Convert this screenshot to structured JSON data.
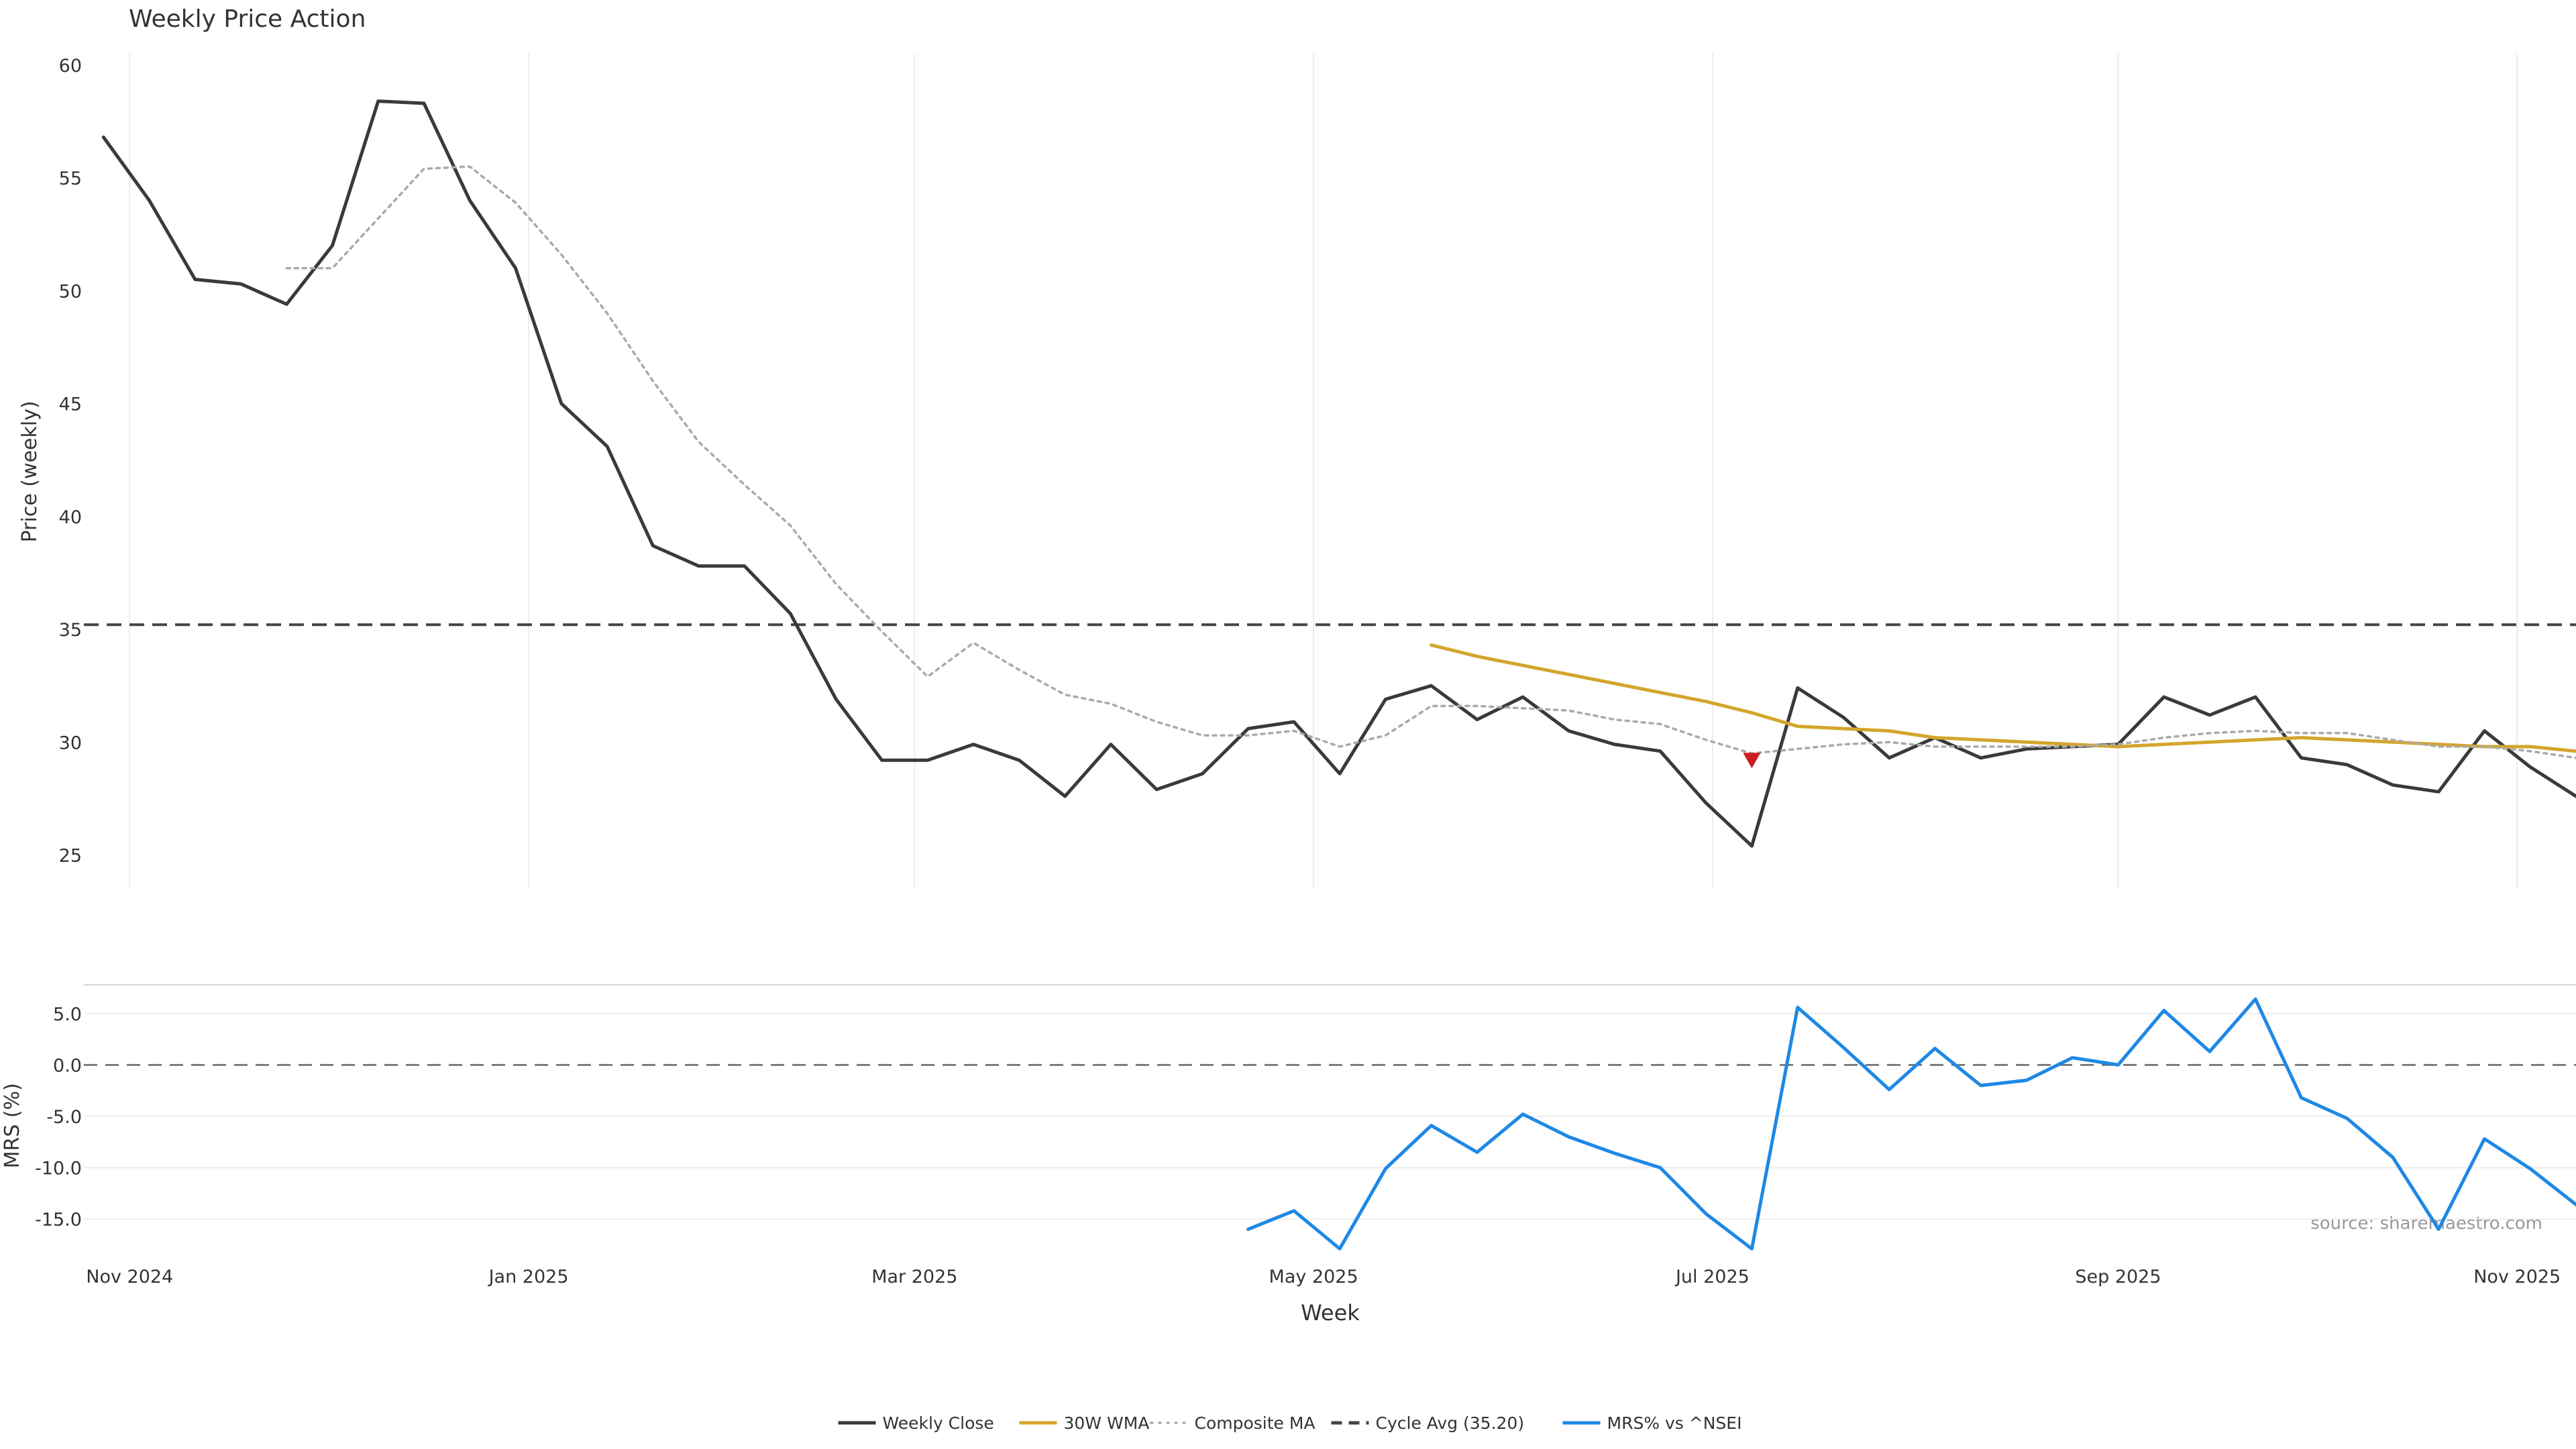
{
  "chart_data": {
    "type": "line",
    "title": "Weekly Price Action",
    "price_panel": {
      "ylabel": "Price (weekly)",
      "ylim": [
        23.5,
        60.5
      ],
      "yticks": [
        25,
        30,
        35,
        40,
        45,
        50,
        55,
        60
      ],
      "grid": "vertical"
    },
    "mrs_panel": {
      "ylabel": "MRS (%)",
      "ylim": [
        -17.8,
        7.8
      ],
      "yticks": [
        5.0,
        0.0,
        -5.0,
        -10.0,
        -15.0
      ],
      "ytick_labels": [
        "5.0",
        "0.0",
        "-5.0",
        "-10.0",
        "-15.0"
      ],
      "zero_line": true,
      "grid": "horizontal"
    },
    "xlabel": "Week",
    "x_ticks": [
      {
        "date": "2024-11-01",
        "label": "Nov 2024"
      },
      {
        "date": "2025-01-01",
        "label": "Jan 2025"
      },
      {
        "date": "2025-03-01",
        "label": "Mar 2025"
      },
      {
        "date": "2025-05-01",
        "label": "May 2025"
      },
      {
        "date": "2025-07-01",
        "label": "Jul 2025"
      },
      {
        "date": "2025-09-01",
        "label": "Sep 2025"
      },
      {
        "date": "2025-11-01",
        "label": "Nov 2025"
      }
    ],
    "x_range": [
      "2024-10-25",
      "2025-11-10"
    ],
    "dates": [
      "2024-10-28",
      "2024-11-04",
      "2024-11-11",
      "2024-11-18",
      "2024-11-25",
      "2024-12-02",
      "2024-12-09",
      "2024-12-16",
      "2024-12-23",
      "2024-12-30",
      "2025-01-06",
      "2025-01-13",
      "2025-01-20",
      "2025-01-27",
      "2025-02-03",
      "2025-02-10",
      "2025-02-17",
      "2025-02-24",
      "2025-03-03",
      "2025-03-10",
      "2025-03-17",
      "2025-03-24",
      "2025-03-31",
      "2025-04-07",
      "2025-04-14",
      "2025-04-21",
      "2025-04-28",
      "2025-05-05",
      "2025-05-12",
      "2025-05-19",
      "2025-05-26",
      "2025-06-02",
      "2025-06-09",
      "2025-06-16",
      "2025-06-23",
      "2025-06-30",
      "2025-07-07",
      "2025-07-14",
      "2025-07-21",
      "2025-07-28",
      "2025-08-04",
      "2025-08-11",
      "2025-08-18",
      "2025-08-25",
      "2025-09-01",
      "2025-09-08",
      "2025-09-15",
      "2025-09-22",
      "2025-09-29",
      "2025-10-06",
      "2025-10-13",
      "2025-10-20",
      "2025-10-27",
      "2025-11-03",
      "2025-11-10"
    ],
    "series": [
      {
        "name": "Weekly Close",
        "color": "#3a3a3a",
        "style": "solid",
        "panel": "price",
        "values": [
          56.8,
          54.0,
          50.5,
          50.3,
          49.4,
          52.0,
          58.4,
          58.3,
          54.0,
          51.0,
          45.0,
          43.1,
          38.7,
          37.8,
          37.8,
          35.7,
          31.9,
          29.2,
          29.2,
          29.9,
          29.2,
          27.6,
          29.9,
          27.9,
          28.6,
          30.6,
          30.9,
          28.6,
          31.9,
          32.5,
          31.0,
          32.0,
          30.5,
          29.9,
          29.6,
          27.3,
          25.4,
          32.4,
          31.1,
          29.3,
          30.2,
          29.3,
          29.7,
          29.8,
          29.9,
          32.0,
          31.2,
          32.0,
          29.3,
          29.0,
          28.1,
          27.8,
          30.5,
          28.9,
          27.6
        ]
      },
      {
        "name": "30W WMA",
        "color": "#d4a52c",
        "style": "solid",
        "panel": "price",
        "values": [
          null,
          null,
          null,
          null,
          null,
          null,
          null,
          null,
          null,
          null,
          null,
          null,
          null,
          null,
          null,
          null,
          null,
          null,
          null,
          null,
          null,
          null,
          null,
          null,
          null,
          null,
          null,
          null,
          null,
          34.3,
          33.8,
          33.4,
          33.0,
          32.6,
          32.2,
          31.8,
          31.3,
          30.7,
          30.6,
          30.5,
          30.2,
          30.1,
          30.0,
          29.9,
          29.8,
          29.9,
          30.0,
          30.1,
          30.2,
          30.1,
          30.0,
          29.9,
          29.8,
          29.8,
          29.6
        ]
      },
      {
        "name": "Composite MA",
        "color": "#aaaaaa",
        "style": "dotted",
        "panel": "price",
        "values": [
          null,
          null,
          null,
          null,
          51.0,
          51.0,
          53.2,
          55.4,
          55.5,
          53.9,
          51.6,
          49.0,
          46.0,
          43.3,
          41.4,
          39.6,
          37.0,
          34.9,
          32.9,
          34.4,
          33.2,
          32.1,
          31.7,
          30.9,
          30.3,
          30.3,
          30.5,
          29.8,
          30.3,
          31.6,
          31.6,
          31.5,
          31.4,
          31.0,
          30.8,
          30.1,
          29.5,
          29.7,
          29.9,
          30.0,
          29.8,
          29.8,
          29.8,
          29.8,
          29.9,
          30.2,
          30.4,
          30.5,
          30.4,
          30.4,
          30.1,
          29.8,
          29.8,
          29.6,
          29.3
        ]
      },
      {
        "name": "MRS% vs ^NSEI",
        "color": "#1e88e5",
        "style": "solid",
        "panel": "mrs",
        "values": [
          null,
          null,
          null,
          null,
          null,
          null,
          null,
          null,
          null,
          null,
          null,
          null,
          null,
          null,
          null,
          null,
          null,
          null,
          null,
          null,
          null,
          null,
          null,
          null,
          null,
          -16.0,
          -14.2,
          -17.9,
          -10.1,
          -5.9,
          -8.5,
          -4.8,
          -7.0,
          -8.6,
          -10.0,
          -14.5,
          -17.9,
          5.6,
          1.7,
          -2.4,
          1.6,
          -2.0,
          -1.5,
          0.7,
          0.0,
          5.3,
          1.3,
          6.4,
          -3.2,
          -5.2,
          -9.0,
          -16.0,
          -7.2,
          -10.1,
          -13.6
        ]
      }
    ],
    "reference_lines": [
      {
        "name": "Cycle Avg (35.20)",
        "value": 35.2,
        "color": "#444444",
        "style": "dashed",
        "panel": "price"
      }
    ],
    "markers": [
      {
        "date": "2025-07-07",
        "value": 29.2,
        "shape": "down-triangle",
        "color": "#cc1f1f"
      }
    ],
    "legend": {
      "placement": "bottom-center",
      "entries": [
        {
          "label": "Weekly Close",
          "color": "#3a3a3a",
          "style": "solid"
        },
        {
          "label": "30W WMA",
          "color": "#d4a52c",
          "style": "solid"
        },
        {
          "label": "Composite MA",
          "color": "#aaaaaa",
          "style": "dotted"
        },
        {
          "label": "Cycle Avg (35.20)",
          "color": "#444444",
          "style": "dashed"
        },
        {
          "label": "MRS% vs ^NSEI",
          "color": "#1e88e5",
          "style": "solid"
        }
      ]
    },
    "annotation": "source: sharemaestro.com"
  }
}
